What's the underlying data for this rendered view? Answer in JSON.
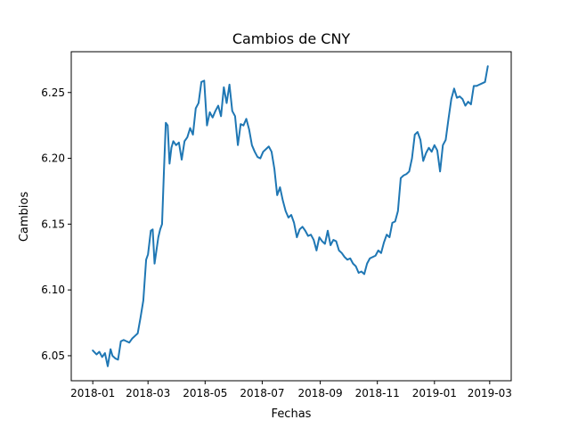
{
  "chart_data": {
    "type": "line",
    "title": "Cambios de CNY",
    "xlabel": "Fechas",
    "ylabel": "Cambios",
    "x_ticks": [
      "2018-01",
      "2018-03",
      "2018-05",
      "2018-07",
      "2018-09",
      "2018-11",
      "2019-01",
      "2019-03"
    ],
    "y_ticks": [
      "6.05",
      "6.10",
      "6.15",
      "6.20",
      "6.25"
    ],
    "xlim": [
      "2017-12-09",
      "2019-03-24"
    ],
    "ylim": [
      6.031,
      6.281
    ],
    "grid": false,
    "legend": "none",
    "series": [
      {
        "color": "#1f77b4",
        "x": [
          "2018-01-01",
          "2018-01-05",
          "2018-01-08",
          "2018-01-11",
          "2018-01-14",
          "2018-01-17",
          "2018-01-20",
          "2018-01-22",
          "2018-01-25",
          "2018-01-28",
          "2018-01-31",
          "2018-02-03",
          "2018-02-06",
          "2018-02-09",
          "2018-02-12",
          "2018-02-15",
          "2018-02-18",
          "2018-02-21",
          "2018-02-24",
          "2018-02-27",
          "2018-03-01",
          "2018-03-04",
          "2018-03-06",
          "2018-03-08",
          "2018-03-10",
          "2018-03-12",
          "2018-03-14",
          "2018-03-16",
          "2018-03-18",
          "2018-03-20",
          "2018-03-22",
          "2018-03-24",
          "2018-03-26",
          "2018-03-28",
          "2018-03-31",
          "2018-04-03",
          "2018-04-06",
          "2018-04-09",
          "2018-04-12",
          "2018-04-15",
          "2018-04-18",
          "2018-04-21",
          "2018-04-24",
          "2018-04-27",
          "2018-04-30",
          "2018-05-03",
          "2018-05-06",
          "2018-05-09",
          "2018-05-12",
          "2018-05-15",
          "2018-05-18",
          "2018-05-21",
          "2018-05-24",
          "2018-05-27",
          "2018-05-30",
          "2018-06-02",
          "2018-06-05",
          "2018-06-08",
          "2018-06-11",
          "2018-06-14",
          "2018-06-17",
          "2018-06-20",
          "2018-06-23",
          "2018-06-26",
          "2018-06-29",
          "2018-07-02",
          "2018-07-05",
          "2018-07-08",
          "2018-07-11",
          "2018-07-14",
          "2018-07-17",
          "2018-07-20",
          "2018-07-23",
          "2018-07-26",
          "2018-07-29",
          "2018-08-01",
          "2018-08-04",
          "2018-08-07",
          "2018-08-10",
          "2018-08-13",
          "2018-08-16",
          "2018-08-19",
          "2018-08-22",
          "2018-08-25",
          "2018-08-28",
          "2018-08-31",
          "2018-09-03",
          "2018-09-06",
          "2018-09-09",
          "2018-09-12",
          "2018-09-15",
          "2018-09-18",
          "2018-09-21",
          "2018-09-24",
          "2018-09-27",
          "2018-09-30",
          "2018-10-03",
          "2018-10-06",
          "2018-10-09",
          "2018-10-12",
          "2018-10-15",
          "2018-10-18",
          "2018-10-21",
          "2018-10-24",
          "2018-10-27",
          "2018-10-30",
          "2018-11-02",
          "2018-11-05",
          "2018-11-08",
          "2018-11-11",
          "2018-11-14",
          "2018-11-17",
          "2018-11-20",
          "2018-11-23",
          "2018-11-26",
          "2018-11-29",
          "2018-12-02",
          "2018-12-05",
          "2018-12-08",
          "2018-12-11",
          "2018-12-14",
          "2018-12-17",
          "2018-12-20",
          "2018-12-23",
          "2018-12-26",
          "2018-12-29",
          "2019-01-01",
          "2019-01-04",
          "2019-01-07",
          "2019-01-10",
          "2019-01-13",
          "2019-01-16",
          "2019-01-19",
          "2019-01-22",
          "2019-01-25",
          "2019-01-28",
          "2019-01-31",
          "2019-02-03",
          "2019-02-06",
          "2019-02-09",
          "2019-02-12",
          "2019-02-15",
          "2019-02-18",
          "2019-02-21",
          "2019-02-24",
          "2019-02-27"
        ],
        "y": [
          6.054,
          6.051,
          6.053,
          6.049,
          6.052,
          6.042,
          6.055,
          6.05,
          6.048,
          6.047,
          6.061,
          6.062,
          6.061,
          6.06,
          6.063,
          6.065,
          6.067,
          6.079,
          6.092,
          6.123,
          6.127,
          6.145,
          6.146,
          6.12,
          6.13,
          6.14,
          6.146,
          6.15,
          6.19,
          6.227,
          6.225,
          6.196,
          6.208,
          6.213,
          6.21,
          6.212,
          6.199,
          6.213,
          6.216,
          6.223,
          6.218,
          6.238,
          6.242,
          6.258,
          6.259,
          6.225,
          6.235,
          6.231,
          6.236,
          6.24,
          6.232,
          6.254,
          6.242,
          6.256,
          6.236,
          6.232,
          6.21,
          6.226,
          6.225,
          6.23,
          6.222,
          6.21,
          6.205,
          6.201,
          6.2,
          6.205,
          6.207,
          6.209,
          6.205,
          6.192,
          6.172,
          6.178,
          6.168,
          6.16,
          6.155,
          6.157,
          6.151,
          6.14,
          6.146,
          6.148,
          6.145,
          6.141,
          6.142,
          6.138,
          6.13,
          6.14,
          6.137,
          6.135,
          6.145,
          6.134,
          6.138,
          6.137,
          6.13,
          6.128,
          6.125,
          6.123,
          6.124,
          6.12,
          6.118,
          6.113,
          6.114,
          6.112,
          6.12,
          6.124,
          6.125,
          6.126,
          6.13,
          6.128,
          6.136,
          6.142,
          6.14,
          6.151,
          6.152,
          6.16,
          6.185,
          6.187,
          6.188,
          6.19,
          6.2,
          6.218,
          6.22,
          6.214,
          6.198,
          6.204,
          6.208,
          6.205,
          6.21,
          6.206,
          6.19,
          6.21,
          6.214,
          6.23,
          6.245,
          6.253,
          6.246,
          6.247,
          6.245,
          6.24,
          6.243,
          6.241,
          6.255,
          6.255,
          6.256,
          6.257,
          6.258,
          6.27
        ]
      }
    ]
  }
}
